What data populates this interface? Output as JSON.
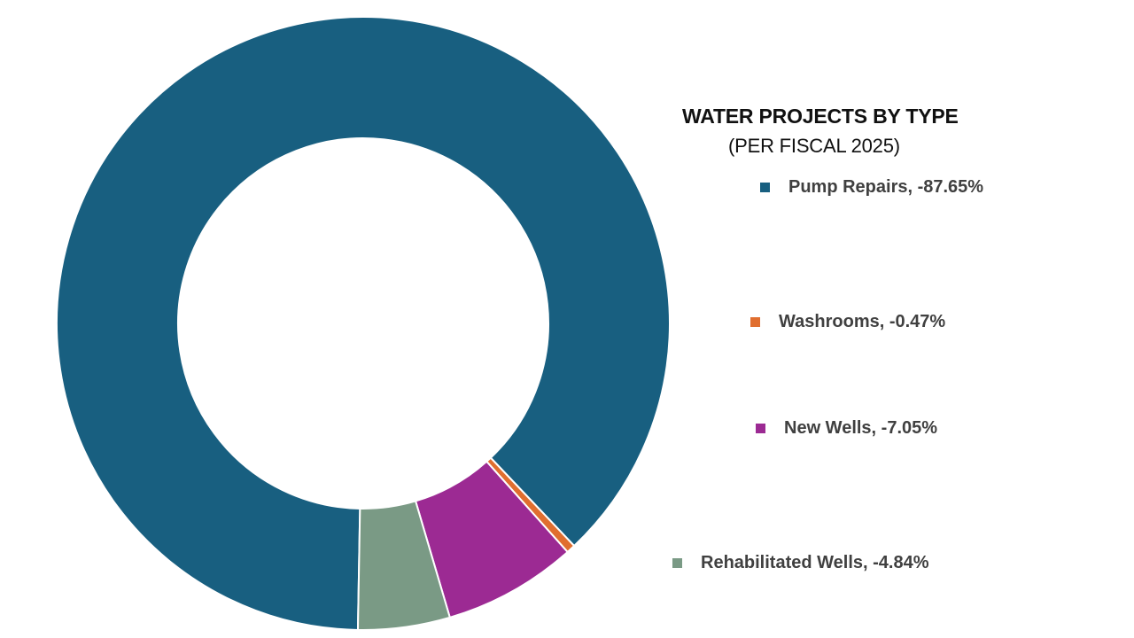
{
  "chart_data": {
    "type": "pie",
    "variant": "donut",
    "title": "WATER PROJECTS BY TYPE",
    "subtitle": "(PER FISCAL 2025)",
    "legend_position": "right",
    "series": [
      {
        "category": "Pump Repairs",
        "value": -87.65,
        "label": "Pump Repairs, -87.65%",
        "color": "#185F80"
      },
      {
        "category": "Washrooms",
        "value": -0.47,
        "label": "Washrooms, -0.47%",
        "color": "#E06E2F"
      },
      {
        "category": "New Wells",
        "value": -7.05,
        "label": "New Wells, -7.05%",
        "color": "#9C2A93"
      },
      {
        "category": "Rehabilitated Wells",
        "value": -4.84,
        "label": "Rehabilitated Wells, -4.84%",
        "color": "#7A9A85"
      }
    ]
  }
}
